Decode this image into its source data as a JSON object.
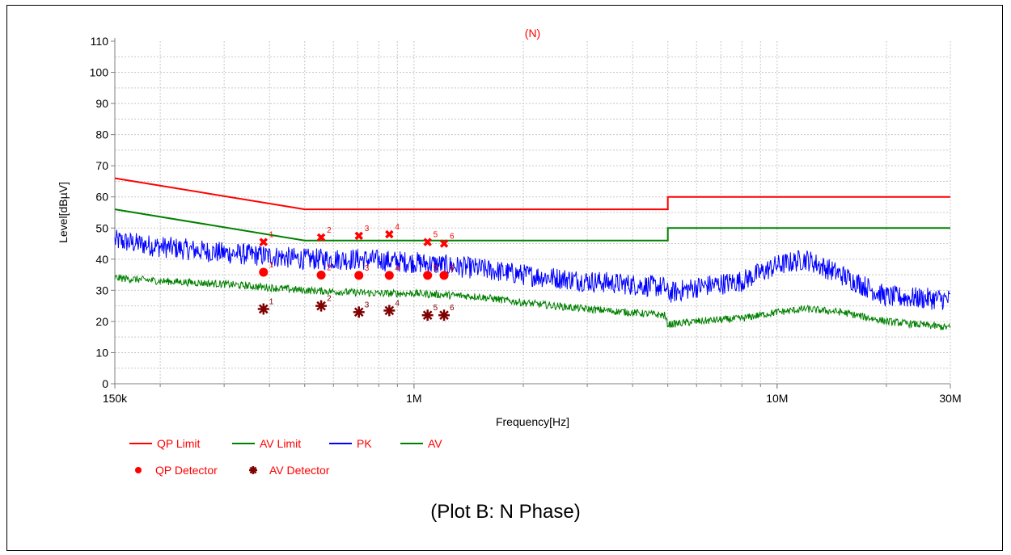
{
  "chart_data": {
    "type": "line",
    "title": "(N)",
    "title_color": "#ff0000",
    "xlabel": "Frequency[Hz]",
    "ylabel": "Level[dBµV]",
    "x_scale": "log",
    "xlim": [
      150000,
      30000000
    ],
    "ylim": [
      0,
      110
    ],
    "grid": true,
    "x_ticks": [
      {
        "value": 150000,
        "label": "150k"
      },
      {
        "value": 1000000,
        "label": "1M"
      },
      {
        "value": 10000000,
        "label": "10M"
      },
      {
        "value": 30000000,
        "label": "30M"
      }
    ],
    "y_ticks": [
      0,
      10,
      20,
      30,
      40,
      50,
      60,
      70,
      80,
      90,
      100,
      110
    ],
    "series": [
      {
        "name": "QP Limit",
        "color": "#ff0000",
        "x": [
          150000,
          500000,
          500000,
          5000000,
          5000000,
          30000000
        ],
        "y": [
          66,
          56,
          56,
          56,
          60,
          60
        ]
      },
      {
        "name": "AV Limit",
        "color": "#008000",
        "x": [
          150000,
          500000,
          500000,
          5000000,
          5000000,
          30000000
        ],
        "y": [
          56,
          46,
          46,
          46,
          50,
          50
        ]
      },
      {
        "name": "PK",
        "color": "#0000ff",
        "x": [
          150000,
          200000,
          300000,
          400000,
          500000,
          700000,
          1000000,
          1500000,
          2000000,
          3000000,
          4900000,
          5000000,
          6000000,
          8000000,
          10000000,
          12000000,
          15000000,
          20000000,
          30000000
        ],
        "y": [
          46,
          44,
          42,
          41,
          40,
          40,
          39,
          37,
          35,
          33,
          31,
          29,
          31,
          33,
          38,
          40,
          35,
          28,
          27
        ],
        "noise": 3.5
      },
      {
        "name": "AV",
        "color": "#008000",
        "x": [
          150000,
          200000,
          300000,
          500000,
          800000,
          1000000,
          1500000,
          2000000,
          3000000,
          4900000,
          5000000,
          6000000,
          8000000,
          10000000,
          12000000,
          15000000,
          20000000,
          30000000
        ],
        "y": [
          34,
          33,
          32,
          30,
          29,
          29,
          28,
          26,
          24,
          22,
          19,
          20,
          21,
          23,
          24,
          23,
          20,
          18
        ],
        "noise": 1.2
      }
    ],
    "markers": [
      {
        "name": "QP Detector",
        "symbol": "circle",
        "color": "#ff0000",
        "label_color": "#ff0000",
        "x": [
          385000,
          555000,
          705000,
          855000,
          1090000,
          1210000
        ],
        "y": [
          35.8,
          34.9,
          34.8,
          34.8,
          34.8,
          34.8
        ],
        "labels": [
          "1",
          "2",
          "3",
          "4",
          "5",
          "6"
        ]
      },
      {
        "name": "AV Detector",
        "symbol": "star",
        "color": "#800000",
        "label_color": "#800000",
        "x": [
          385000,
          555000,
          705000,
          855000,
          1090000,
          1210000
        ],
        "y": [
          24,
          25,
          23,
          23.5,
          22,
          22
        ],
        "labels": [
          "1",
          "2",
          "3",
          "4",
          "5",
          "6"
        ]
      },
      {
        "name": "",
        "symbol": "x",
        "color": "#ff0000",
        "label_color": "#ff0000",
        "x": [
          385000,
          555000,
          705000,
          855000,
          1090000,
          1210000
        ],
        "y": [
          45.5,
          47,
          47.5,
          48,
          45.5,
          45
        ],
        "labels": [
          "1",
          "2",
          "3",
          "4",
          "5",
          "6"
        ]
      }
    ],
    "legend": {
      "placement": "bottom-left",
      "items": [
        {
          "label": "QP Limit",
          "symbol": "line",
          "color": "#ff0000"
        },
        {
          "label": "AV Limit",
          "symbol": "line",
          "color": "#008000"
        },
        {
          "label": "PK",
          "symbol": "line",
          "color": "#0000ff"
        },
        {
          "label": "AV",
          "symbol": "line",
          "color": "#008000"
        },
        {
          "label": "QP Detector",
          "symbol": "circle",
          "color": "#ff0000"
        },
        {
          "label": "AV Detector",
          "symbol": "star",
          "color": "#800000"
        }
      ],
      "text_color": "#ff0000"
    }
  },
  "caption": "(Plot B: N Phase)"
}
